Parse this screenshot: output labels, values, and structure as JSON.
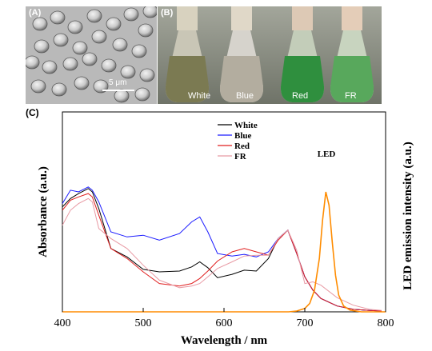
{
  "panels": {
    "a": {
      "label": "(A)",
      "scale_bar": "5 μm"
    },
    "b": {
      "label": "(B)",
      "flasks": [
        "White",
        "Blue",
        "Red",
        "FR"
      ]
    },
    "c": {
      "label": "(C)"
    }
  },
  "chart_data": {
    "type": "line",
    "title": "",
    "xlabel": "Wavelength / nm",
    "ylabel": "Absorbance (a.u.)",
    "ylabel_right": "LED emission intensity (a.u.)",
    "xlim": [
      400,
      800
    ],
    "ylim": [
      0,
      1.2
    ],
    "x_ticks": [
      "400",
      "500",
      "600",
      "700",
      "800"
    ],
    "legend_placement": "top-center",
    "annotation": "LED",
    "series": [
      {
        "name": "White",
        "color": "#000000",
        "x": [
          400,
          410,
          420,
          432,
          437,
          445,
          460,
          480,
          500,
          520,
          545,
          560,
          570,
          580,
          592,
          610,
          625,
          640,
          655,
          667,
          679,
          690,
          700,
          710,
          720,
          740,
          760,
          780,
          795
        ],
        "y": [
          0.63,
          0.68,
          0.71,
          0.74,
          0.72,
          0.62,
          0.38,
          0.33,
          0.255,
          0.24,
          0.245,
          0.27,
          0.3,
          0.265,
          0.205,
          0.225,
          0.25,
          0.245,
          0.32,
          0.44,
          0.49,
          0.35,
          0.21,
          0.13,
          0.08,
          0.035,
          0.015,
          0.008,
          0.005
        ]
      },
      {
        "name": "Blue",
        "color": "#1a1aff",
        "x": [
          400,
          410,
          420,
          432,
          437,
          445,
          460,
          480,
          500,
          520,
          545,
          560,
          570,
          580,
          592,
          610,
          625,
          640,
          655,
          667,
          679,
          690,
          700,
          710,
          720,
          740,
          760,
          780,
          795
        ],
        "y": [
          0.65,
          0.73,
          0.72,
          0.75,
          0.73,
          0.66,
          0.48,
          0.45,
          0.46,
          0.43,
          0.47,
          0.54,
          0.57,
          0.48,
          0.35,
          0.335,
          0.345,
          0.33,
          0.36,
          0.44,
          0.49,
          0.35,
          0.21,
          0.13,
          0.08,
          0.035,
          0.015,
          0.008,
          0.005
        ]
      },
      {
        "name": "Red",
        "color": "#e01e1e",
        "x": [
          400,
          410,
          420,
          432,
          437,
          445,
          460,
          480,
          500,
          520,
          545,
          560,
          570,
          580,
          592,
          610,
          625,
          640,
          655,
          667,
          679,
          690,
          700,
          710,
          720,
          740,
          760,
          780,
          795
        ],
        "y": [
          0.61,
          0.67,
          0.69,
          0.71,
          0.69,
          0.58,
          0.38,
          0.32,
          0.24,
          0.17,
          0.155,
          0.17,
          0.2,
          0.245,
          0.305,
          0.36,
          0.38,
          0.36,
          0.34,
          0.43,
          0.49,
          0.35,
          0.21,
          0.13,
          0.08,
          0.035,
          0.015,
          0.008,
          0.005
        ]
      },
      {
        "name": "FR",
        "color": "#e89aa4",
        "x": [
          400,
          410,
          420,
          432,
          437,
          445,
          460,
          480,
          500,
          520,
          545,
          560,
          570,
          580,
          592,
          610,
          625,
          640,
          655,
          667,
          679,
          690,
          700,
          710,
          720,
          740,
          760,
          780,
          795
        ],
        "y": [
          0.52,
          0.61,
          0.65,
          0.68,
          0.66,
          0.5,
          0.44,
          0.38,
          0.28,
          0.19,
          0.145,
          0.155,
          0.17,
          0.21,
          0.26,
          0.3,
          0.335,
          0.34,
          0.34,
          0.44,
          0.49,
          0.37,
          0.17,
          0.18,
          0.16,
          0.085,
          0.04,
          0.015,
          0.008
        ]
      },
      {
        "name": "LED",
        "color": "#ff8c00",
        "x": [
          400,
          680,
          690,
          700,
          706,
          712,
          718,
          722,
          726,
          730,
          734,
          738,
          742,
          748,
          756,
          770,
          800
        ],
        "y": [
          0.0,
          0.0,
          0.005,
          0.02,
          0.05,
          0.13,
          0.32,
          0.55,
          0.72,
          0.64,
          0.42,
          0.22,
          0.1,
          0.035,
          0.01,
          0.0,
          0.0
        ]
      }
    ]
  }
}
